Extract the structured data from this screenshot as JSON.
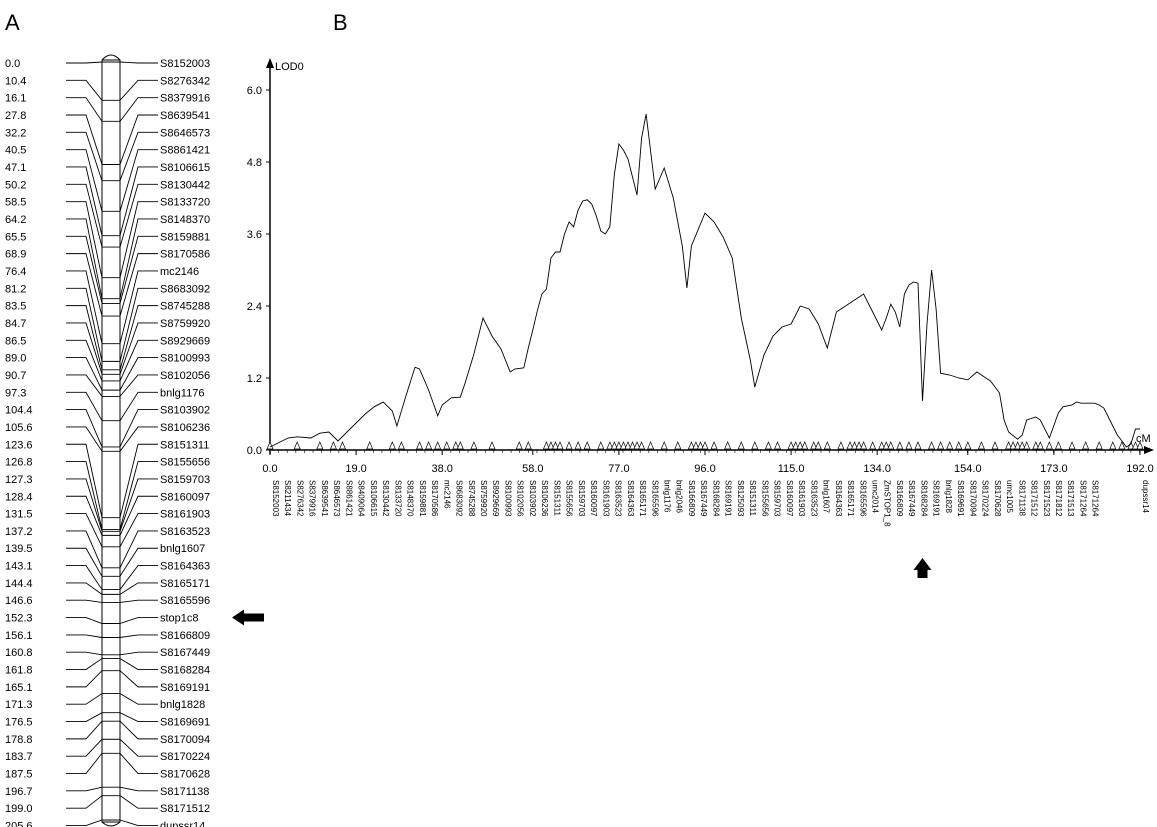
{
  "panels": {
    "a": "A",
    "b": "B"
  },
  "linkage_map": {
    "markers": [
      {
        "pos": "0.0",
        "name": "S8152003"
      },
      {
        "pos": "10.4",
        "name": "S8276342"
      },
      {
        "pos": "16.1",
        "name": "S8379916"
      },
      {
        "pos": "27.8",
        "name": "S8639541"
      },
      {
        "pos": "32.2",
        "name": "S8646573"
      },
      {
        "pos": "40.5",
        "name": "S8861421"
      },
      {
        "pos": "47.1",
        "name": "S8106615"
      },
      {
        "pos": "50.2",
        "name": "S8130442"
      },
      {
        "pos": "58.5",
        "name": "S8133720"
      },
      {
        "pos": "64.2",
        "name": "S8148370"
      },
      {
        "pos": "65.5",
        "name": "S8159881"
      },
      {
        "pos": "68.9",
        "name": "S8170586"
      },
      {
        "pos": "76.4",
        "name": "mc2146"
      },
      {
        "pos": "81.2",
        "name": "S8683092"
      },
      {
        "pos": "83.5",
        "name": "S8745288"
      },
      {
        "pos": "84.7",
        "name": "S8759920"
      },
      {
        "pos": "86.5",
        "name": "S8929669"
      },
      {
        "pos": "89.0",
        "name": "S8100993"
      },
      {
        "pos": "90.7",
        "name": "S8102056"
      },
      {
        "pos": "97.3",
        "name": "bnlg1176"
      },
      {
        "pos": "104.4",
        "name": "S8103902"
      },
      {
        "pos": "105.6",
        "name": "S8106236"
      },
      {
        "pos": "123.6",
        "name": "S8151311"
      },
      {
        "pos": "126.8",
        "name": "S8155656"
      },
      {
        "pos": "127.3",
        "name": "S8159703"
      },
      {
        "pos": "128.4",
        "name": "S8160097"
      },
      {
        "pos": "131.5",
        "name": "S8161903"
      },
      {
        "pos": "137.2",
        "name": "S8163523"
      },
      {
        "pos": "139.5",
        "name": "bnlg1607"
      },
      {
        "pos": "143.1",
        "name": "S8164363"
      },
      {
        "pos": "144.4",
        "name": "S8165171"
      },
      {
        "pos": "146.6",
        "name": "S8165596"
      },
      {
        "pos": "152.3",
        "name": "stop1c8"
      },
      {
        "pos": "156.1",
        "name": "S8166809"
      },
      {
        "pos": "160.8",
        "name": "S8167449"
      },
      {
        "pos": "161.8",
        "name": "S8168284"
      },
      {
        "pos": "165.1",
        "name": "S8169191"
      },
      {
        "pos": "171.3",
        "name": "bnlg1828"
      },
      {
        "pos": "176.5",
        "name": "S8169691"
      },
      {
        "pos": "178.8",
        "name": "S8170094"
      },
      {
        "pos": "183.7",
        "name": "S8170224"
      },
      {
        "pos": "187.5",
        "name": "S8170628"
      },
      {
        "pos": "196.7",
        "name": "S8171138"
      },
      {
        "pos": "199.0",
        "name": "S8171512"
      },
      {
        "pos": "205.6",
        "name": "dupssr14"
      }
    ],
    "highlighted_marker": "stop1c8"
  },
  "chart_data": {
    "type": "line",
    "ylabel": "LOD0",
    "xlabel": "cM",
    "ylim": [
      0,
      6.3
    ],
    "xlim": [
      0,
      192
    ],
    "x_ticks": [
      "0.0",
      "19.0",
      "38.0",
      "58.0",
      "77.0",
      "96.0",
      "115.0",
      "134.0",
      "154.0",
      "173.0",
      "192.0"
    ],
    "y_ticks": [
      "0.0",
      "1.2",
      "2.4",
      "3.6",
      "4.8",
      "6.0"
    ],
    "series": [
      {
        "x": [
          0,
          4,
          6,
          9,
          11,
          13,
          15,
          17,
          19,
          21,
          23,
          25,
          27,
          28,
          30,
          32,
          33,
          35,
          37,
          38,
          40,
          42,
          43,
          45,
          47,
          49,
          51,
          53,
          54,
          56,
          57,
          58,
          59,
          60,
          61,
          62,
          63,
          64,
          65,
          66,
          67,
          68,
          69,
          70,
          71,
          72,
          73,
          74,
          75,
          76,
          77,
          78,
          79,
          80,
          81,
          82,
          83,
          85,
          87,
          89,
          91,
          92,
          93,
          96,
          98,
          100,
          102,
          104,
          106,
          107,
          109,
          111,
          113,
          115,
          117,
          119,
          121,
          123,
          125,
          127,
          129,
          131,
          133,
          135,
          136,
          137,
          138,
          139,
          140,
          141,
          142,
          143,
          144,
          145,
          146,
          147,
          148,
          150,
          152,
          154,
          156,
          158,
          159,
          161,
          162,
          163,
          165,
          166,
          167,
          169,
          170,
          172,
          174,
          175,
          177,
          178,
          179,
          181,
          182,
          183,
          184,
          185,
          186,
          187,
          188,
          189,
          190,
          191,
          192
        ],
        "y": [
          0.05,
          0.2,
          0.22,
          0.2,
          0.28,
          0.3,
          0.15,
          0.3,
          0.45,
          0.6,
          0.72,
          0.8,
          0.65,
          0.4,
          0.9,
          1.38,
          1.35,
          1.0,
          0.57,
          0.75,
          0.87,
          0.88,
          1.1,
          1.6,
          2.2,
          1.9,
          1.68,
          1.3,
          1.35,
          1.37,
          1.7,
          2.0,
          2.32,
          2.6,
          2.68,
          3.2,
          3.3,
          3.3,
          3.6,
          3.8,
          3.72,
          4.0,
          4.15,
          4.17,
          4.1,
          3.9,
          3.65,
          3.6,
          3.72,
          4.6,
          5.1,
          5.0,
          4.85,
          4.55,
          4.25,
          5.2,
          5.6,
          4.35,
          4.7,
          4.2,
          3.4,
          2.7,
          3.4,
          3.95,
          3.8,
          3.55,
          3.2,
          2.2,
          1.5,
          1.05,
          1.58,
          1.9,
          2.05,
          2.1,
          2.4,
          2.35,
          2.1,
          1.7,
          2.3,
          2.4,
          2.5,
          2.6,
          2.3,
          2.0,
          2.2,
          2.43,
          2.3,
          2.05,
          2.6,
          2.75,
          2.8,
          2.78,
          0.82,
          2.1,
          3.0,
          2.35,
          1.28,
          1.25,
          1.2,
          1.17,
          1.3,
          1.2,
          1.15,
          0.95,
          0.5,
          0.3,
          0.18,
          0.25,
          0.5,
          0.55,
          0.5,
          0.2,
          0.62,
          0.72,
          0.75,
          0.8,
          0.78,
          0.78,
          0.78,
          0.75,
          0.7,
          0.55,
          0.4,
          0.25,
          0.15,
          0.05,
          0.1,
          0.35,
          0.35
        ],
        "highlighted_x": 144
      }
    ],
    "x_markers": [
      {
        "x": 0.0,
        "name": "S8152003"
      },
      {
        "x": 2.7,
        "name": "S8211434"
      },
      {
        "x": 5.4,
        "name": "S8276342"
      },
      {
        "x": 8.1,
        "name": "S8379916"
      },
      {
        "x": 10.8,
        "name": "S8639541"
      },
      {
        "x": 13.5,
        "name": "S8646573"
      },
      {
        "x": 16.2,
        "name": "S8861421"
      },
      {
        "x": 18.9,
        "name": "S8409064"
      },
      {
        "x": 21.6,
        "name": "S8106615"
      },
      {
        "x": 24.3,
        "name": "S8130442"
      },
      {
        "x": 27.0,
        "name": "S8133720"
      },
      {
        "x": 29.7,
        "name": "S8148370"
      },
      {
        "x": 32.4,
        "name": "S8159881"
      },
      {
        "x": 35.1,
        "name": "S8170586"
      },
      {
        "x": 37.8,
        "name": "mc2146"
      },
      {
        "x": 40.5,
        "name": "S8683092"
      },
      {
        "x": 43.2,
        "name": "S8745288"
      },
      {
        "x": 45.9,
        "name": "S8759920"
      },
      {
        "x": 48.6,
        "name": "S8929669"
      },
      {
        "x": 51.3,
        "name": "S8100993"
      },
      {
        "x": 54.0,
        "name": "S8102056"
      },
      {
        "x": 56.7,
        "name": "S8103902"
      },
      {
        "x": 59.4,
        "name": "S8106236"
      },
      {
        "x": 62.1,
        "name": "S8151311"
      },
      {
        "x": 64.8,
        "name": "S8155656"
      },
      {
        "x": 67.5,
        "name": "S8159703"
      },
      {
        "x": 70.2,
        "name": "S8160097"
      },
      {
        "x": 72.9,
        "name": "S8161903"
      },
      {
        "x": 75.6,
        "name": "S8163523"
      },
      {
        "x": 78.3,
        "name": "S8164363"
      },
      {
        "x": 81.0,
        "name": "S8165171"
      },
      {
        "x": 83.7,
        "name": "S8165596"
      },
      {
        "x": 86.4,
        "name": "bnlg1176"
      },
      {
        "x": 89.1,
        "name": "bnlg2046"
      },
      {
        "x": 91.8,
        "name": "S8166809"
      },
      {
        "x": 94.5,
        "name": "S8167449"
      },
      {
        "x": 97.2,
        "name": "S8168284"
      },
      {
        "x": 99.9,
        "name": "S8169191"
      },
      {
        "x": 102.6,
        "name": "S8125093"
      },
      {
        "x": 105.3,
        "name": "S8151311"
      },
      {
        "x": 108.0,
        "name": "S8155656"
      },
      {
        "x": 110.7,
        "name": "S8159703"
      },
      {
        "x": 113.4,
        "name": "S8160097"
      },
      {
        "x": 116.1,
        "name": "S8161903"
      },
      {
        "x": 118.8,
        "name": "S8163523"
      },
      {
        "x": 121.5,
        "name": "bnlg1607"
      },
      {
        "x": 124.2,
        "name": "S8164363"
      },
      {
        "x": 126.9,
        "name": "S8165171"
      },
      {
        "x": 129.6,
        "name": "S8165596"
      },
      {
        "x": 132.3,
        "name": "umc2014"
      },
      {
        "x": 135.0,
        "name": "ZmSTOP1_8"
      },
      {
        "x": 137.7,
        "name": "S8166809"
      },
      {
        "x": 140.4,
        "name": "S8167449"
      },
      {
        "x": 143.1,
        "name": "S8168284"
      },
      {
        "x": 145.8,
        "name": "S8169191"
      },
      {
        "x": 148.5,
        "name": "bnlg1828"
      },
      {
        "x": 151.2,
        "name": "S8169691"
      },
      {
        "x": 153.9,
        "name": "S8170094"
      },
      {
        "x": 156.6,
        "name": "S8170224"
      },
      {
        "x": 159.3,
        "name": "S8170628"
      },
      {
        "x": 162.0,
        "name": "umc1005"
      },
      {
        "x": 164.7,
        "name": "S8171138"
      },
      {
        "x": 167.4,
        "name": "S8171512"
      },
      {
        "x": 170.1,
        "name": "S8171523"
      },
      {
        "x": 172.8,
        "name": "S8171812"
      },
      {
        "x": 175.5,
        "name": "S8171513"
      },
      {
        "x": 178.2,
        "name": "S8171264"
      },
      {
        "x": 180.9,
        "name": "S8171264"
      },
      {
        "x": 192.0,
        "name": "dupssr14"
      }
    ],
    "triangle_positions": [
      0,
      6,
      11,
      14,
      16,
      22,
      27,
      29,
      33,
      35,
      37,
      39,
      41,
      42,
      45,
      49,
      55,
      57,
      61,
      62,
      63,
      64,
      66,
      68,
      70,
      73,
      75,
      76,
      77,
      78,
      79,
      80,
      81,
      82,
      84,
      87,
      90,
      93,
      94,
      95,
      96,
      98,
      101,
      104,
      107,
      110,
      112,
      115,
      116,
      117,
      118,
      120,
      121,
      123,
      126,
      128,
      129,
      130,
      131,
      133,
      135,
      136,
      137,
      139,
      141,
      143,
      146,
      148,
      150,
      152,
      154,
      157,
      160,
      163,
      164,
      165,
      166,
      167,
      169,
      170,
      172,
      174,
      177,
      180,
      183,
      186,
      188,
      190,
      191,
      192
    ]
  }
}
